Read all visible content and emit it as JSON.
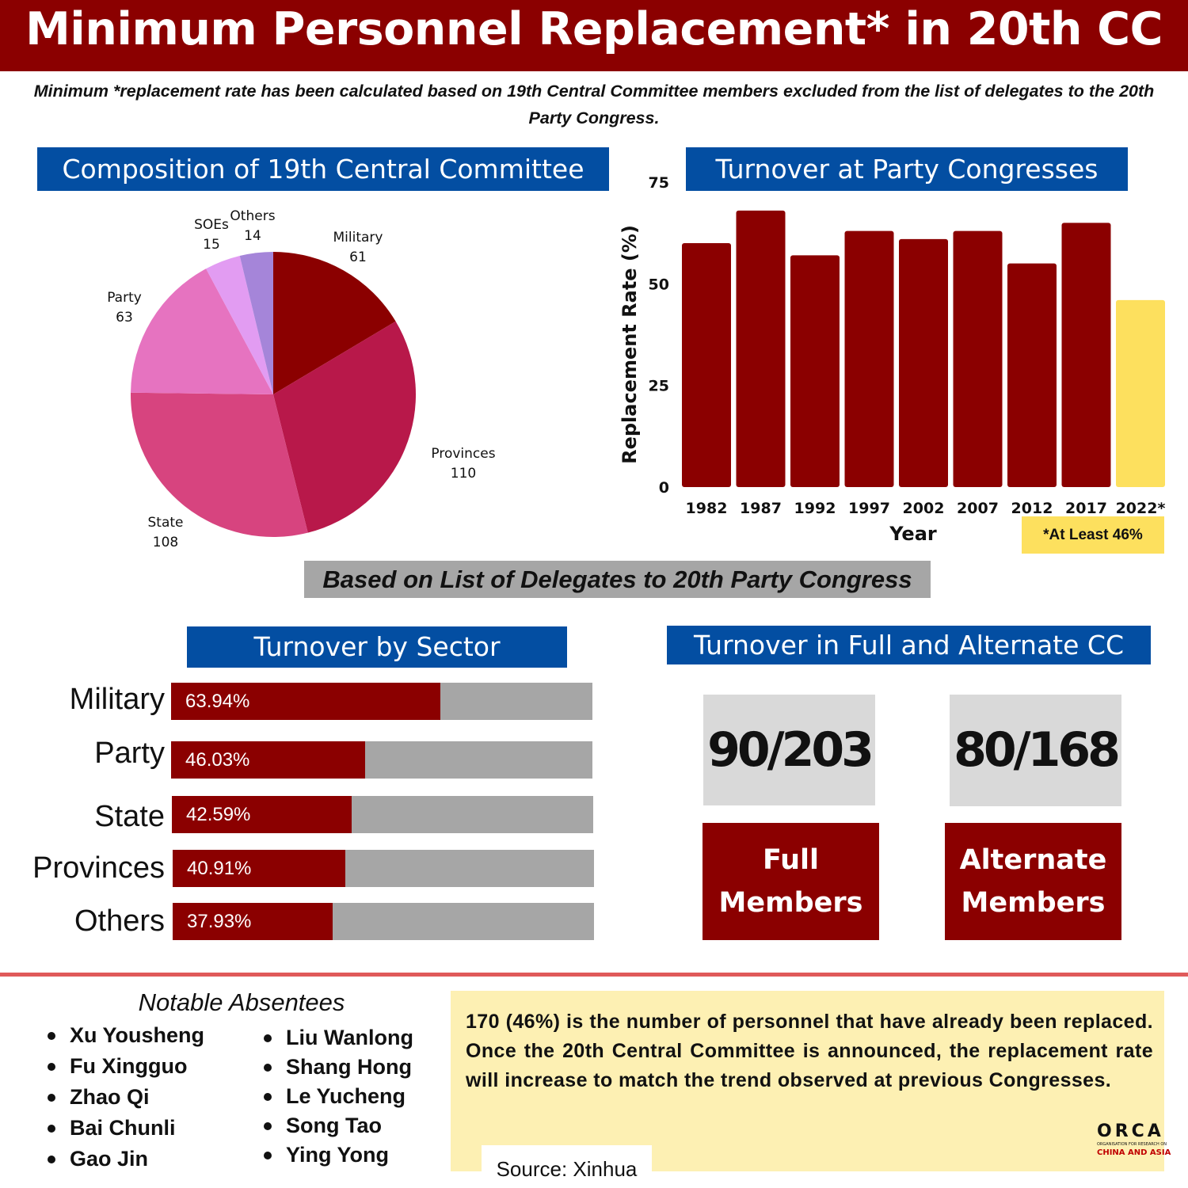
{
  "header": {
    "title": "Minimum Personnel Replacement* in 20th CC",
    "subtitle": "Minimum *replacement rate has been calculated based on 19th Central Committee members excluded from the list of delegates to the 20th Party Congress."
  },
  "colors": {
    "primary_red": "#8b0000",
    "header_blue": "#034ea2",
    "highlight_yellow": "#fde05e",
    "track_gray": "#a6a6a6"
  },
  "chart_data": [
    {
      "type": "pie",
      "title": "Composition of 19th Central Committee",
      "slices": [
        {
          "label": "Military",
          "value": 61,
          "color": "#8b0000"
        },
        {
          "label": "Provinces",
          "value": 110,
          "color": "#b8184a"
        },
        {
          "label": "State",
          "value": 108,
          "color": "#d7447f"
        },
        {
          "label": "Party",
          "value": 63,
          "color": "#e673c0"
        },
        {
          "label": "SOEs",
          "value": 15,
          "color": "#e29cf2"
        },
        {
          "label": "Others",
          "value": 14,
          "color": "#a585d9"
        }
      ]
    },
    {
      "type": "bar",
      "title": "Turnover at Party Congresses",
      "categories": [
        "1982",
        "1987",
        "1992",
        "1997",
        "2002",
        "2007",
        "2012",
        "2017",
        "2022*"
      ],
      "values": [
        60,
        68,
        57,
        63,
        61,
        63,
        55,
        65,
        46
      ],
      "colors": [
        "#8b0000",
        "#8b0000",
        "#8b0000",
        "#8b0000",
        "#8b0000",
        "#8b0000",
        "#8b0000",
        "#8b0000",
        "#fde05e"
      ],
      "xlabel": "Year",
      "ylabel": "Replacement Rate (%)",
      "yticks": [
        0,
        25,
        50,
        75
      ],
      "ylim": [
        0,
        75
      ],
      "note": "*At Least 46%"
    },
    {
      "type": "bar",
      "orientation": "horizontal",
      "title": "Turnover by Sector",
      "categories": [
        "Military",
        "Party",
        "State",
        "Provinces",
        "Others"
      ],
      "values": [
        63.94,
        46.03,
        42.59,
        40.91,
        37.93
      ],
      "labels": [
        "63.94%",
        "46.03%",
        "42.59%",
        "40.91%",
        "37.93%"
      ],
      "xlim": [
        0,
        100
      ]
    }
  ],
  "based_on": "Based on List of Delegates to 20th Party Congress",
  "members": {
    "title": "Turnover in Full and Alternate CC",
    "full": {
      "ratio": "90/203",
      "line1": "Full",
      "line2": "Members"
    },
    "alternate": {
      "ratio": "80/168",
      "line1": "Alternate",
      "line2": "Members"
    }
  },
  "absentees": {
    "title": "Notable Absentees",
    "left": [
      "Xu Yousheng",
      "Fu Xingguo",
      "Zhao Qi",
      "Bai Chunli",
      "Gao Jin"
    ],
    "right": [
      "Liu Wanlong",
      "Shang Hong",
      "Le Yucheng",
      "Song Tao",
      "Ying Yong"
    ]
  },
  "summary": "170 (46%) is the number of personnel that have already been replaced. Once the 20th Central Committee is announced, the replacement rate will increase to match the trend observed at previous Congresses.",
  "source": "Source: Xinhua",
  "logo": {
    "name": "ORCA",
    "line1": "ORGANISATION FOR RESEARCH ON",
    "line2": "CHINA AND ASIA"
  }
}
